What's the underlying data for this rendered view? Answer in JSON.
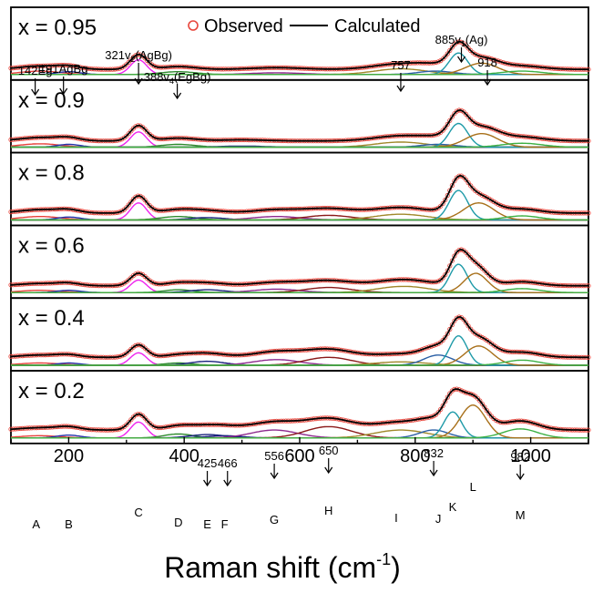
{
  "chart_data": {
    "type": "line",
    "xlabel": "Raman shift (cm",
    "xlabel_sup": "-1",
    "xlabel_close": ")",
    "xlim": [
      100,
      1100
    ],
    "xticks": [
      200,
      400,
      600,
      800,
      1000
    ],
    "grid": false,
    "legend": {
      "placement": "top",
      "entries": [
        {
          "label": "Observed",
          "marker": "circle",
          "color": "#e8463c"
        },
        {
          "label": "Calculated",
          "marker": "line",
          "color": "#000000"
        }
      ]
    },
    "component_colors": {
      "A": "#e8403a",
      "B": "#2233aa",
      "C": "#ee22ee",
      "D": "#2e8b2e",
      "E": "#1a237e",
      "F": "#1a237e",
      "G": "#8e2a8e",
      "H": "#8b1a1a",
      "I": "#a0882a",
      "J": "#2a5fa5",
      "K": "#1e9aa8",
      "L": "#a8701a",
      "M": "#3cb043"
    },
    "panels": [
      {
        "label": "x = 0.95",
        "baseline": 0.03,
        "calc_baseline": 0.09,
        "components": [
          {
            "name": "A",
            "center": 150,
            "width": 35,
            "height": 0.06
          },
          {
            "name": "B",
            "center": 200,
            "width": 20,
            "height": 0.05
          },
          {
            "name": "C",
            "center": 321,
            "width": 14,
            "height": 0.26
          },
          {
            "name": "D",
            "center": 390,
            "width": 30,
            "height": 0.05
          },
          {
            "name": "G",
            "center": 560,
            "width": 45,
            "height": 0.03
          },
          {
            "name": "I",
            "center": 775,
            "width": 45,
            "height": 0.1
          },
          {
            "name": "J",
            "center": 835,
            "width": 30,
            "height": 0.06
          },
          {
            "name": "K",
            "center": 875,
            "width": 16,
            "height": 0.38
          },
          {
            "name": "L",
            "center": 915,
            "width": 28,
            "height": 0.2
          },
          {
            "name": "M",
            "center": 985,
            "width": 35,
            "height": 0.06
          }
        ]
      },
      {
        "label": "x = 0.9",
        "baseline": 0.03,
        "calc_baseline": 0.11,
        "components": [
          {
            "name": "A",
            "center": 150,
            "width": 35,
            "height": 0.06
          },
          {
            "name": "B",
            "center": 200,
            "width": 20,
            "height": 0.05
          },
          {
            "name": "C",
            "center": 321,
            "width": 14,
            "height": 0.27
          },
          {
            "name": "D",
            "center": 390,
            "width": 30,
            "height": 0.05
          },
          {
            "name": "E",
            "center": 500,
            "width": 40,
            "height": 0.02
          },
          {
            "name": "I",
            "center": 775,
            "width": 45,
            "height": 0.09
          },
          {
            "name": "J",
            "center": 840,
            "width": 30,
            "height": 0.05
          },
          {
            "name": "K",
            "center": 875,
            "width": 16,
            "height": 0.42
          },
          {
            "name": "L",
            "center": 915,
            "width": 28,
            "height": 0.24
          },
          {
            "name": "M",
            "center": 985,
            "width": 35,
            "height": 0.07
          }
        ]
      },
      {
        "label": "x = 0.8",
        "baseline": 0.03,
        "calc_baseline": 0.12,
        "components": [
          {
            "name": "A",
            "center": 150,
            "width": 35,
            "height": 0.06
          },
          {
            "name": "B",
            "center": 200,
            "width": 20,
            "height": 0.05
          },
          {
            "name": "C",
            "center": 321,
            "width": 14,
            "height": 0.3
          },
          {
            "name": "D",
            "center": 390,
            "width": 30,
            "height": 0.06
          },
          {
            "name": "E",
            "center": 440,
            "width": 30,
            "height": 0.04
          },
          {
            "name": "G",
            "center": 560,
            "width": 40,
            "height": 0.06
          },
          {
            "name": "H",
            "center": 650,
            "width": 40,
            "height": 0.08
          },
          {
            "name": "I",
            "center": 775,
            "width": 45,
            "height": 0.1
          },
          {
            "name": "K",
            "center": 875,
            "width": 16,
            "height": 0.52
          },
          {
            "name": "L",
            "center": 910,
            "width": 26,
            "height": 0.3
          },
          {
            "name": "M",
            "center": 985,
            "width": 30,
            "height": 0.07
          }
        ]
      },
      {
        "label": "x = 0.6",
        "baseline": 0.03,
        "calc_baseline": 0.12,
        "components": [
          {
            "name": "A",
            "center": 150,
            "width": 35,
            "height": 0.04
          },
          {
            "name": "B",
            "center": 200,
            "width": 20,
            "height": 0.04
          },
          {
            "name": "C",
            "center": 321,
            "width": 14,
            "height": 0.22
          },
          {
            "name": "D",
            "center": 390,
            "width": 25,
            "height": 0.05
          },
          {
            "name": "E",
            "center": 440,
            "width": 30,
            "height": 0.05
          },
          {
            "name": "G",
            "center": 560,
            "width": 40,
            "height": 0.06
          },
          {
            "name": "H",
            "center": 650,
            "width": 40,
            "height": 0.09
          },
          {
            "name": "I",
            "center": 780,
            "width": 45,
            "height": 0.11
          },
          {
            "name": "K",
            "center": 875,
            "width": 15,
            "height": 0.5
          },
          {
            "name": "L",
            "center": 905,
            "width": 20,
            "height": 0.34
          },
          {
            "name": "M",
            "center": 985,
            "width": 30,
            "height": 0.07
          }
        ]
      },
      {
        "label": "x = 0.4",
        "baseline": 0.03,
        "calc_baseline": 0.14,
        "components": [
          {
            "name": "A",
            "center": 150,
            "width": 35,
            "height": 0.04
          },
          {
            "name": "B",
            "center": 200,
            "width": 20,
            "height": 0.04
          },
          {
            "name": "C",
            "center": 321,
            "width": 14,
            "height": 0.22
          },
          {
            "name": "D",
            "center": 390,
            "width": 25,
            "height": 0.04
          },
          {
            "name": "E",
            "center": 440,
            "width": 30,
            "height": 0.07
          },
          {
            "name": "G",
            "center": 560,
            "width": 40,
            "height": 0.1
          },
          {
            "name": "H",
            "center": 650,
            "width": 40,
            "height": 0.14
          },
          {
            "name": "I",
            "center": 775,
            "width": 45,
            "height": 0.06
          },
          {
            "name": "J",
            "center": 840,
            "width": 25,
            "height": 0.18
          },
          {
            "name": "K",
            "center": 875,
            "width": 15,
            "height": 0.52
          },
          {
            "name": "L",
            "center": 910,
            "width": 24,
            "height": 0.34
          },
          {
            "name": "M",
            "center": 985,
            "width": 30,
            "height": 0.09
          }
        ]
      },
      {
        "label": "x = 0.2",
        "baseline": 0.03,
        "calc_baseline": 0.14,
        "components": [
          {
            "name": "A",
            "center": 150,
            "width": 35,
            "height": 0.04
          },
          {
            "name": "B",
            "center": 200,
            "width": 20,
            "height": 0.05
          },
          {
            "name": "C",
            "center": 321,
            "width": 14,
            "height": 0.28
          },
          {
            "name": "D",
            "center": 390,
            "width": 25,
            "height": 0.07
          },
          {
            "name": "E",
            "center": 440,
            "width": 30,
            "height": 0.06
          },
          {
            "name": "F",
            "center": 470,
            "width": 30,
            "height": 0.04
          },
          {
            "name": "G",
            "center": 556,
            "width": 40,
            "height": 0.14
          },
          {
            "name": "H",
            "center": 650,
            "width": 40,
            "height": 0.2
          },
          {
            "name": "I",
            "center": 775,
            "width": 45,
            "height": 0.14
          },
          {
            "name": "J",
            "center": 832,
            "width": 25,
            "height": 0.14
          },
          {
            "name": "K",
            "center": 865,
            "width": 15,
            "height": 0.46
          },
          {
            "name": "L",
            "center": 900,
            "width": 22,
            "height": 0.58
          },
          {
            "name": "M",
            "center": 982,
            "width": 30,
            "height": 0.16
          }
        ]
      }
    ],
    "annotations_top": [
      {
        "text": "142Eg",
        "x": 142,
        "arrow": true
      },
      {
        "text": "191AgBg",
        "x": 191,
        "arrow": true
      },
      {
        "text": "321v",
        "sub": "2",
        "rest": "(AgBg)",
        "x": 321,
        "arrow": true
      },
      {
        "text": "388v",
        "sub": "4",
        "rest": "(EgBg)",
        "x": 388,
        "arrow": true
      },
      {
        "text": "757",
        "x": 775,
        "arrow": true
      },
      {
        "text": "885v",
        "sub": "1",
        "rest": "(Ag)",
        "x": 880,
        "arrow": true
      },
      {
        "text": "918",
        "x": 925,
        "arrow": true
      }
    ],
    "annotations_bottom": [
      {
        "text": "425",
        "x": 440,
        "arrow": true
      },
      {
        "text": "466",
        "x": 475,
        "arrow": true
      },
      {
        "text": "556",
        "x": 556,
        "arrow": true
      },
      {
        "text": "650",
        "x": 650,
        "arrow": true
      },
      {
        "text": "832",
        "x": 832,
        "arrow": true
      },
      {
        "text": "982",
        "x": 982,
        "arrow": true
      }
    ]
  }
}
